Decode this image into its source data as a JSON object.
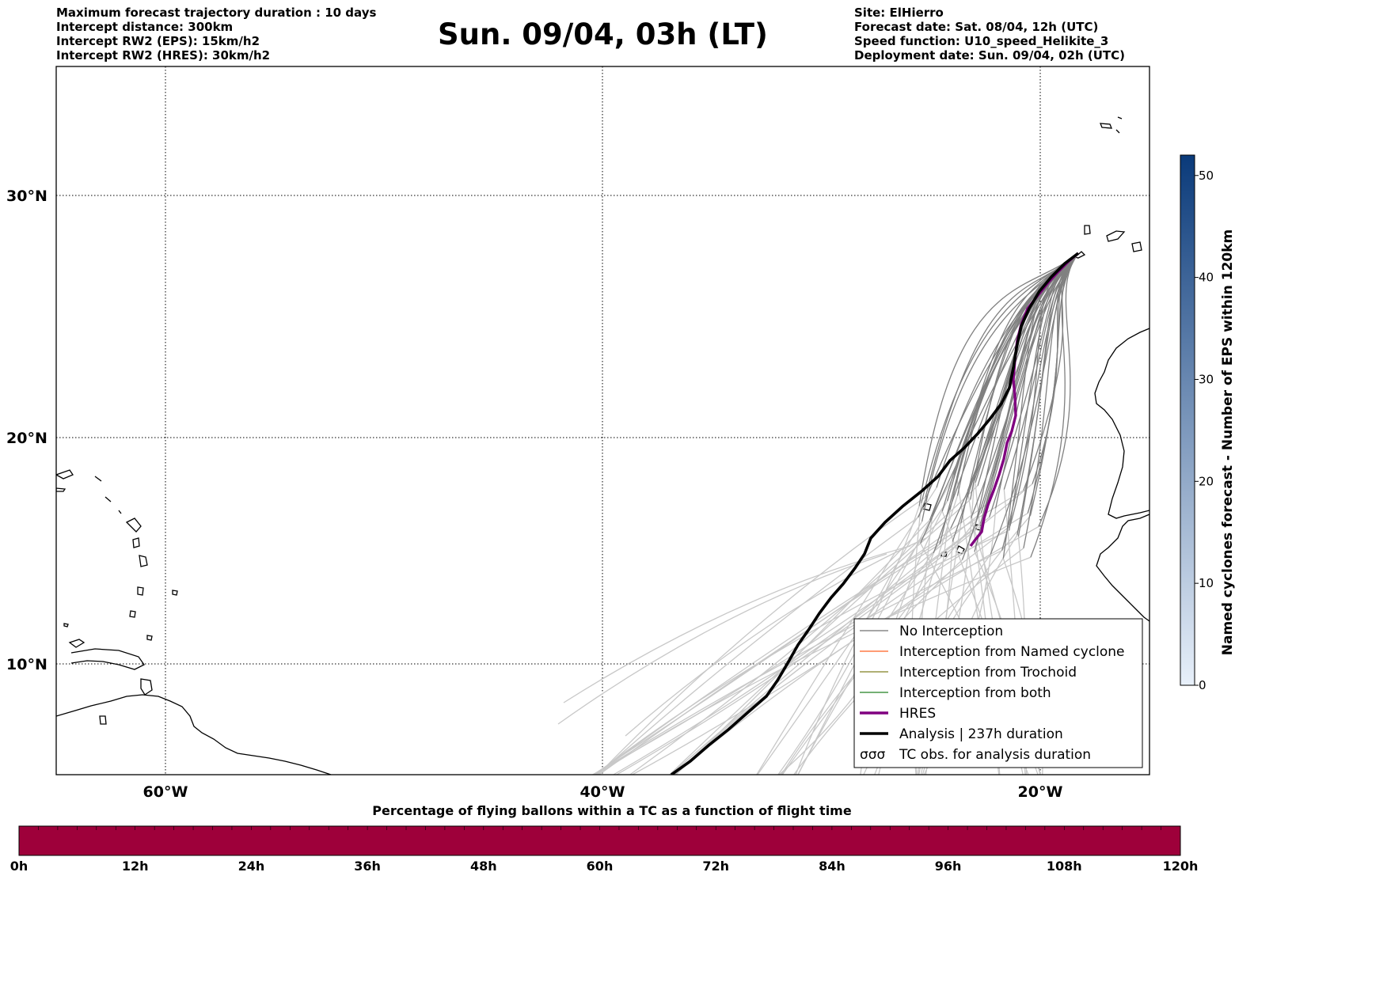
{
  "header": {
    "left_lines": [
      "Maximum forecast trajectory duration : 10 days",
      "Intercept distance: 300km",
      "Intercept RW2 (EPS):  15km/h2",
      "Intercept RW2 (HRES): 30km/h2"
    ],
    "title": "Sun. 09/04, 03h (LT)",
    "right_lines": [
      "Site: ElHierro",
      "Forecast date: Sat. 08/04, 12h (UTC)",
      "Speed function: U10_speed_Helikite_3",
      "Deployment date: Sun. 09/04, 02h (UTC)"
    ]
  },
  "map": {
    "lon_range": [
      -65,
      -15
    ],
    "lat_range": [
      5.5,
      34.8
    ],
    "lat_labels": [
      "30°N",
      "20°N",
      "10°N"
    ],
    "lon_labels": [
      "60°W",
      "40°W",
      "20°W"
    ],
    "colors": {
      "no_interception": "#808080",
      "named_cyclone": "#ff6020",
      "trochoid": "#808020",
      "both": "#208020",
      "hres": "#800080",
      "analysis": "#000000",
      "late_track": "#c8c8c8"
    }
  },
  "legend": {
    "items": [
      {
        "label": "No Interception",
        "style": "thin",
        "color": "#707070"
      },
      {
        "label": "Interception from Named cyclone",
        "style": "thin",
        "color": "#ff6020"
      },
      {
        "label": "Interception from Trochoid",
        "style": "thin",
        "color": "#808020"
      },
      {
        "label": "Interception from both",
        "style": "thin",
        "color": "#208020"
      },
      {
        "label": "HRES",
        "style": "thick",
        "color": "#800080"
      },
      {
        "label": "Analysis | 237h duration",
        "style": "thick",
        "color": "#000000"
      },
      {
        "label": "TC obs. for analysis duration",
        "style": "symbol",
        "color": "#000000"
      }
    ],
    "symbol_glyph": "σσσ"
  },
  "colorbar_right": {
    "label": "Named cyclones forecast - Number of EPS within 120km",
    "ticks": [
      "0",
      "10",
      "20",
      "30",
      "40",
      "50"
    ],
    "tick_values": [
      0,
      10,
      20,
      30,
      40,
      50
    ],
    "max": 52,
    "color_low": "#e8f0fa",
    "color_high": "#0a3a7a"
  },
  "colorbar_bottom": {
    "title": "Percentage of flying ballons within a TC as a function of flight time",
    "ticks": [
      "0h",
      "12h",
      "24h",
      "36h",
      "48h",
      "60h",
      "72h",
      "84h",
      "96h",
      "108h",
      "120h"
    ],
    "fill_color": "#9e003a"
  }
}
